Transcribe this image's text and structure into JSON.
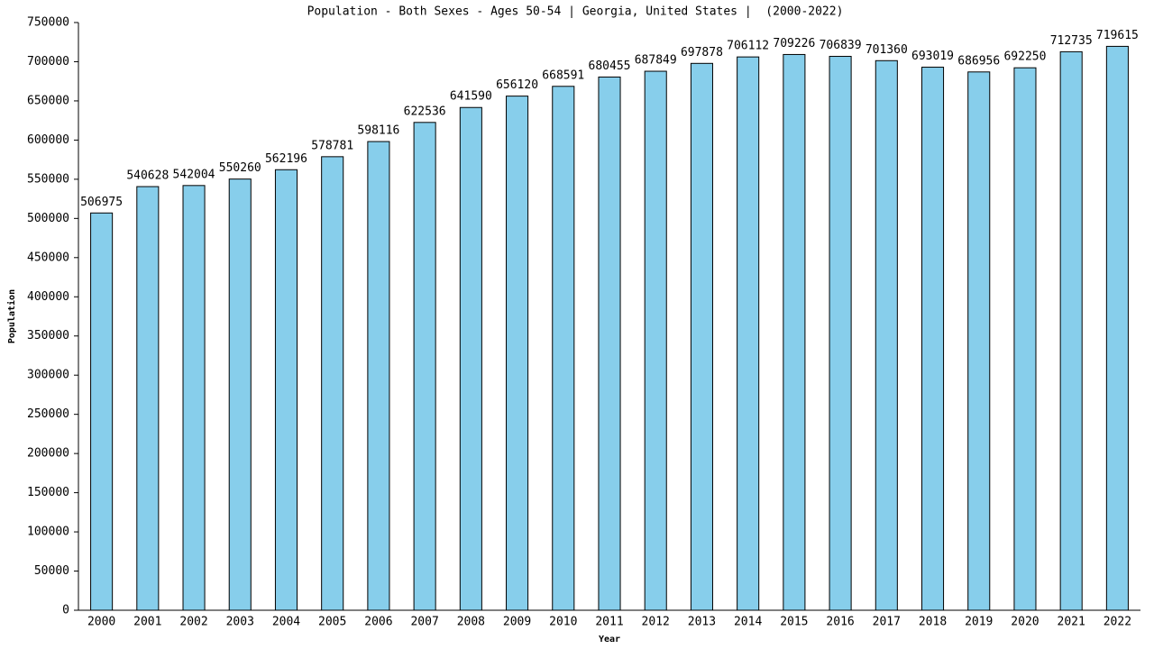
{
  "chart_data": {
    "type": "bar",
    "title": "Population - Both Sexes - Ages 50-54 | Georgia, United States |  (2000-2022)",
    "x_label": "Year",
    "y_label": "Population",
    "categories": [
      "2000",
      "2001",
      "2002",
      "2003",
      "2004",
      "2005",
      "2006",
      "2007",
      "2008",
      "2009",
      "2010",
      "2011",
      "2012",
      "2013",
      "2014",
      "2015",
      "2016",
      "2017",
      "2018",
      "2019",
      "2020",
      "2021",
      "2022"
    ],
    "values": [
      506975,
      540628,
      542004,
      550260,
      562196,
      578781,
      598116,
      622536,
      641590,
      656120,
      668591,
      680455,
      687849,
      697878,
      706112,
      709226,
      706839,
      701360,
      693019,
      686956,
      692250,
      712735,
      719615
    ],
    "color": "#87ceeb",
    "ylim": [
      0,
      750000
    ],
    "yticks": [
      0,
      50000,
      100000,
      150000,
      200000,
      250000,
      300000,
      350000,
      400000,
      450000,
      500000,
      550000,
      600000,
      650000,
      700000,
      750000
    ],
    "grid": false
  }
}
